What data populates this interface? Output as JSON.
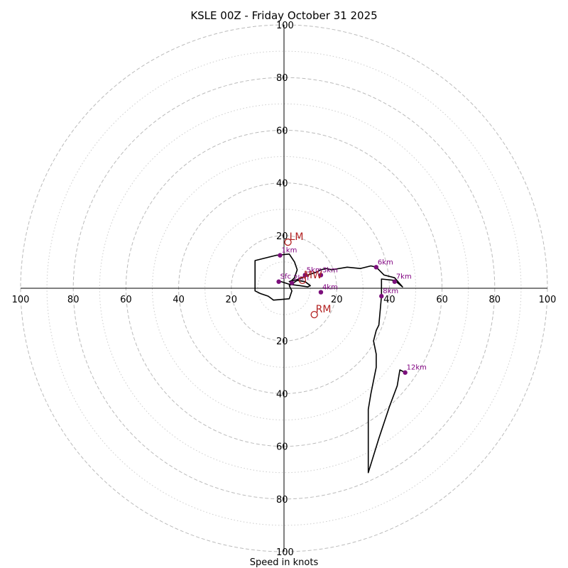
{
  "chart_data": {
    "type": "scatter",
    "title": "KSLE 00Z - Friday October 31 2025",
    "xlabel": "Speed in knots",
    "max_speed": 100,
    "major_rings": [
      20,
      40,
      60,
      80,
      100
    ],
    "minor_rings": [
      10,
      30,
      50,
      70,
      90
    ],
    "x_tick_labels": [
      "100",
      "80",
      "60",
      "40",
      "20",
      "20",
      "40",
      "60",
      "80",
      "100"
    ],
    "x_tick_values": [
      -100,
      -80,
      -60,
      -40,
      -20,
      20,
      40,
      60,
      80,
      100
    ],
    "y_tick_labels": [
      "100",
      "80",
      "60",
      "40",
      "20",
      "20",
      "40",
      "60",
      "80",
      "100"
    ],
    "y_tick_values": [
      100,
      80,
      60,
      40,
      20,
      -20,
      -40,
      -60,
      -80,
      -100
    ],
    "trace": [
      [
        -2,
        2.5
      ],
      [
        -1,
        2.5
      ],
      [
        2,
        1.5
      ],
      [
        6,
        1
      ],
      [
        9,
        0.5
      ],
      [
        10,
        1
      ],
      [
        8,
        2.5
      ],
      [
        5,
        3
      ],
      [
        2,
        1
      ],
      [
        3,
        -1
      ],
      [
        2,
        -4
      ],
      [
        -4,
        -4.5
      ],
      [
        -6,
        -3
      ],
      [
        -9,
        -2
      ],
      [
        -11,
        -1
      ],
      [
        -11,
        4
      ],
      [
        -11,
        7
      ],
      [
        -11,
        10.5
      ],
      [
        -3,
        12.5
      ],
      [
        2,
        13
      ],
      [
        4,
        10
      ],
      [
        5,
        7
      ],
      [
        4,
        4
      ],
      [
        3,
        3
      ],
      [
        2,
        2.5
      ],
      [
        4,
        3
      ],
      [
        7,
        4
      ],
      [
        9,
        5
      ],
      [
        12,
        6
      ],
      [
        14,
        7
      ],
      [
        16,
        7.5
      ],
      [
        18,
        7
      ],
      [
        24,
        8
      ],
      [
        29,
        7.5
      ],
      [
        33,
        8.5
      ],
      [
        35,
        8
      ],
      [
        38,
        5
      ],
      [
        42,
        4
      ],
      [
        45,
        0.5
      ],
      [
        42,
        3
      ],
      [
        37,
        3.5
      ],
      [
        37,
        -3
      ],
      [
        36,
        -14
      ],
      [
        35,
        -16
      ],
      [
        34,
        -20
      ],
      [
        35,
        -25
      ],
      [
        35,
        -30
      ],
      [
        33,
        -40
      ],
      [
        32,
        -46
      ],
      [
        32,
        -70
      ],
      [
        36,
        -57
      ],
      [
        40,
        -45
      ],
      [
        43,
        -37
      ],
      [
        44,
        -31
      ],
      [
        46,
        -32
      ]
    ],
    "height_markers": [
      {
        "label": "Sfc",
        "u": -2,
        "v": 2.5
      },
      {
        "label": "1km",
        "u": -1.5,
        "v": 12.5
      },
      {
        "label": "2km",
        "u": 3,
        "v": 2
      },
      {
        "label": "3km",
        "u": 14,
        "v": 5
      },
      {
        "label": "4km",
        "u": 14,
        "v": -1.5
      },
      {
        "label": "5km",
        "u": 8,
        "v": 5
      },
      {
        "label": "6km",
        "u": 35,
        "v": 8
      },
      {
        "label": "7km",
        "u": 42,
        "v": 2.5
      },
      {
        "label": "8km",
        "u": 37,
        "v": -3
      },
      {
        "label": "12km",
        "u": 46,
        "v": -32
      }
    ],
    "storm_motion": [
      {
        "label": "LM",
        "u": 1.5,
        "v": 17.5,
        "color": "#b22222"
      },
      {
        "label": "MW",
        "u": 7,
        "v": 3,
        "color": "#b22222"
      },
      {
        "label": "RM",
        "u": 11.5,
        "v": -10,
        "color": "#b22222"
      }
    ],
    "colors": {
      "trace": "#000000",
      "height_markers": "#7b0f7b",
      "height_labels": "#800080",
      "storm_motion": "#b22222",
      "rings": "#bbbbbb"
    }
  }
}
